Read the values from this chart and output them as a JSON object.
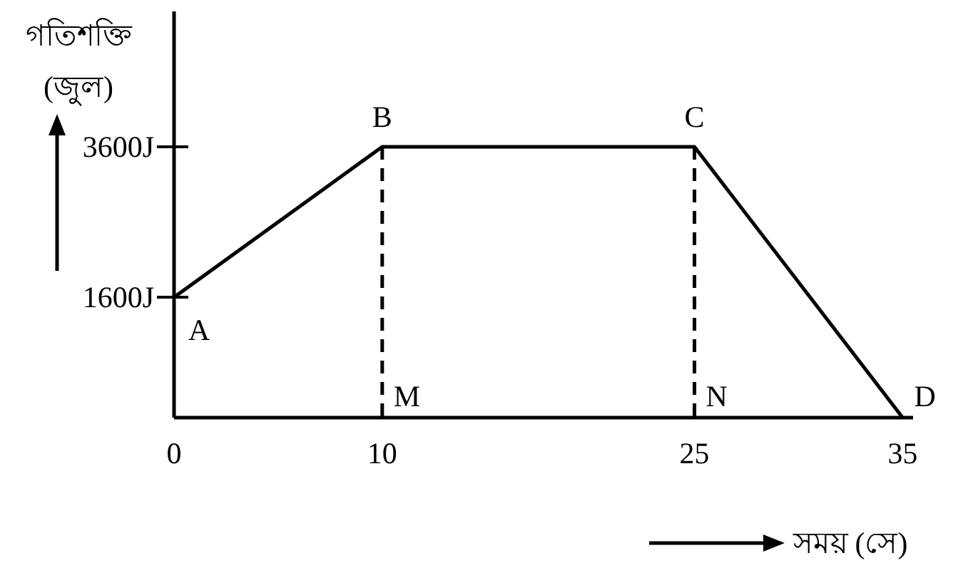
{
  "chart_data": {
    "type": "line",
    "ylabel": "গতিশক্তি (জুল)",
    "xlabel": "সময় (সে)",
    "xlim": [
      0,
      35.5
    ],
    "ylim": [
      0,
      5400
    ],
    "xticks": [
      0,
      10,
      25,
      35
    ],
    "yticks": [
      {
        "value": 3600,
        "label": "3600J"
      },
      {
        "value": 1600,
        "label": "1600J"
      }
    ],
    "series": [
      {
        "color": "#000000",
        "x": [
          0,
          10,
          25,
          35
        ],
        "values": [
          1600,
          3600,
          3600,
          0
        ]
      },
      {
        "type": "line",
        "line_style": "dashed",
        "color": "#000000",
        "x": [
          10,
          10
        ],
        "values": [
          3600,
          0
        ]
      },
      {
        "type": "line",
        "line_style": "dashed",
        "color": "#000000",
        "x": [
          25,
          25
        ],
        "values": [
          3600,
          0
        ]
      }
    ],
    "annotations": [
      {
        "text": "A",
        "x": 0,
        "y": 1600
      },
      {
        "text": "B",
        "x": 10,
        "y": 3600
      },
      {
        "text": "C",
        "x": 25,
        "y": 3600
      },
      {
        "text": "D",
        "x": 35,
        "y": 0
      },
      {
        "text": "M",
        "x": 10,
        "y": 0
      },
      {
        "text": "N",
        "x": 25,
        "y": 0
      }
    ]
  }
}
